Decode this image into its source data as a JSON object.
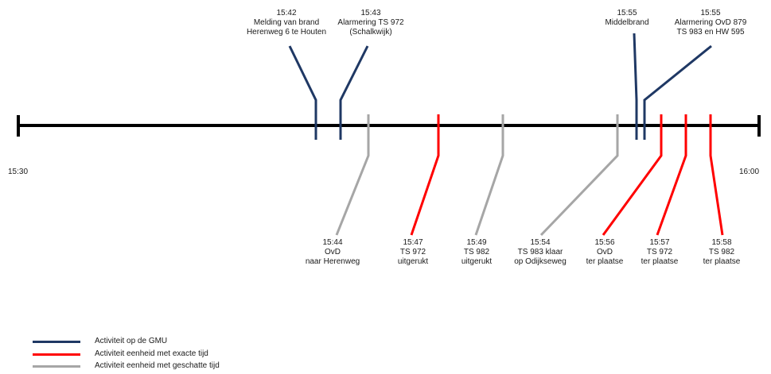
{
  "colors": {
    "axis": "#000000",
    "gmu": "#1f3864",
    "exact": "#ff0000",
    "estimated": "#a6a6a6"
  },
  "timeline": {
    "start_label": "15:30",
    "end_label": "16:00"
  },
  "events_above": [
    {
      "id": "melding",
      "time": "15:42",
      "lines": [
        "Melding van brand",
        "Herenweg 6 te Houten"
      ],
      "category": "gmu"
    },
    {
      "id": "alarmering-ts972",
      "time": "15:43",
      "lines": [
        "Alarmering TS 972",
        "(Schalkwijk)"
      ],
      "category": "gmu"
    },
    {
      "id": "middelbrand",
      "time": "15:55",
      "lines": [
        "Middelbrand"
      ],
      "category": "gmu"
    },
    {
      "id": "alarmering-ovd879",
      "time": "15:55",
      "lines": [
        "Alarmering OvD 879",
        "TS 983 en HW 595"
      ],
      "category": "gmu"
    }
  ],
  "events_below": [
    {
      "id": "ovd-naar-herenweg",
      "time": "15:44",
      "lines": [
        "OvD",
        "naar Herenweg"
      ],
      "category": "estimated"
    },
    {
      "id": "ts972-uitgerukt",
      "time": "15:47",
      "lines": [
        "TS 972",
        "uitgerukt"
      ],
      "category": "exact"
    },
    {
      "id": "ts982-uitgerukt",
      "time": "15:49",
      "lines": [
        "TS 982",
        "uitgerukt"
      ],
      "category": "estimated"
    },
    {
      "id": "ts983-klaar",
      "time": "15:54",
      "lines": [
        "TS 983 klaar",
        "op Odijkseweg"
      ],
      "category": "estimated"
    },
    {
      "id": "ovd-ter-plaatse",
      "time": "15:56",
      "lines": [
        "OvD",
        "ter plaatse"
      ],
      "category": "exact"
    },
    {
      "id": "ts972-ter-plaatse",
      "time": "15:57",
      "lines": [
        "TS 972",
        "ter plaatse"
      ],
      "category": "exact"
    },
    {
      "id": "ts982-ter-plaatse",
      "time": "15:58",
      "lines": [
        "TS 982",
        "ter plaatse"
      ],
      "category": "exact"
    }
  ],
  "legend": [
    {
      "id": "gmu",
      "label": "Activiteit op de GMU",
      "category": "gmu"
    },
    {
      "id": "exact",
      "label": "Activiteit eenheid met exacte tijd",
      "category": "exact"
    },
    {
      "id": "estimated",
      "label": "Activiteit eenheid met geschatte tijd",
      "category": "estimated"
    }
  ]
}
